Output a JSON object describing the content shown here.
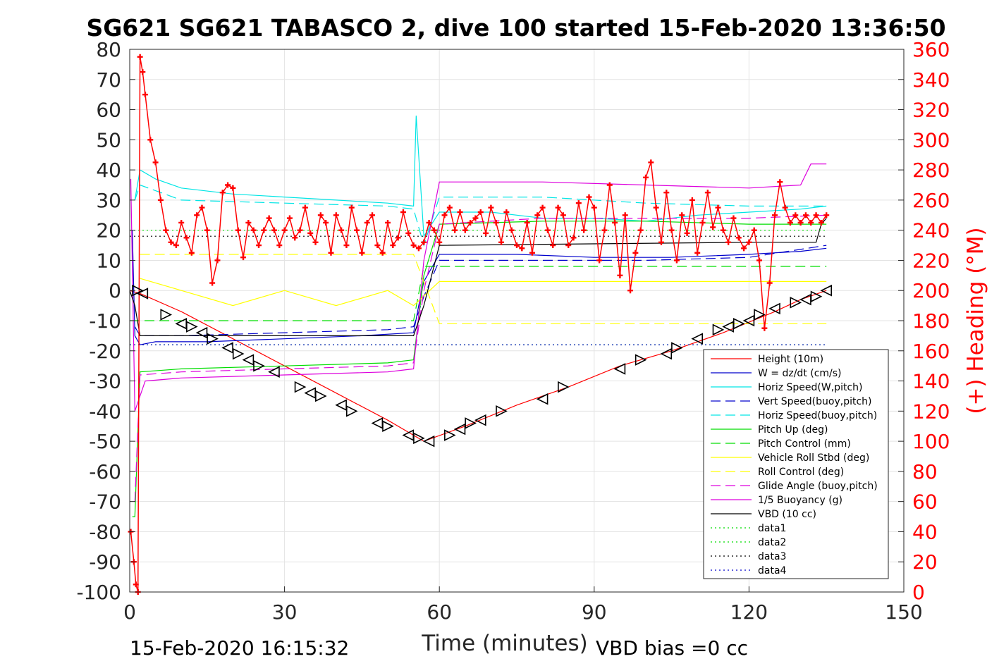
{
  "chart_data": {
    "type": "line",
    "title": "SG621 SG621 TABASCO 2, dive 100 started 15-Feb-2020 13:36:50",
    "xlabel": "Time (minutes)",
    "ylabel": "",
    "y2label": "(+) Heading (°M)",
    "xlim": [
      0,
      150
    ],
    "ylim": [
      -100,
      80
    ],
    "y2lim": [
      0,
      360
    ],
    "xticks": [
      "0",
      "30",
      "60",
      "90",
      "120",
      "150"
    ],
    "yticks": [
      "80",
      "70",
      "60",
      "50",
      "40",
      "30",
      "20",
      "10",
      "0",
      "-10",
      "-20",
      "-30",
      "-40",
      "-50",
      "-60",
      "-70",
      "-80",
      "-90",
      "-100"
    ],
    "y2ticks": [
      "360",
      "340",
      "320",
      "300",
      "280",
      "260",
      "240",
      "220",
      "200",
      "180",
      "160",
      "140",
      "120",
      "100",
      "80",
      "60",
      "40",
      "20",
      "0"
    ],
    "grid": true,
    "legend_position": "bottom-right",
    "footer_left": "15-Feb-2020 16:15:32",
    "footer_right": "VBD bias =0 cc",
    "series": [
      {
        "name": "Height (10m)",
        "color": "#ff0000",
        "style": "solid",
        "x": [
          0,
          2,
          10,
          20,
          30,
          40,
          50,
          57,
          65,
          75,
          85,
          95,
          105,
          115,
          125,
          130,
          135
        ],
        "y": [
          0,
          -1,
          -7,
          -16,
          -25,
          -34,
          -43,
          -50,
          -45,
          -38,
          -32,
          -25,
          -20,
          -14,
          -7,
          -3,
          0
        ]
      },
      {
        "name": "W = dz/dt (cm/s)",
        "color": "#0000cc",
        "style": "solid",
        "x": [
          0.5,
          1,
          2,
          5,
          15,
          30,
          45,
          55,
          56,
          57,
          60,
          75,
          90,
          105,
          120,
          130,
          135
        ],
        "y": [
          20,
          -15,
          -18,
          -17,
          -17,
          -16,
          -15,
          -14,
          -5,
          3,
          12,
          12,
          11,
          11,
          12,
          13,
          14
        ]
      },
      {
        "name": "Horiz Speed(W,pitch)",
        "color": "#00e5e5",
        "style": "solid",
        "x": [
          1,
          2,
          5,
          10,
          20,
          30,
          40,
          50,
          55,
          55.5,
          57,
          60,
          70,
          80,
          90,
          100,
          110,
          120,
          130,
          135
        ],
        "y": [
          30,
          40,
          37,
          34,
          32,
          31,
          30,
          29,
          28,
          58,
          18,
          26,
          26,
          24,
          24,
          23,
          25,
          26,
          27,
          28
        ]
      },
      {
        "name": "Vert Speed(buoy,pitch)",
        "color": "#0000cc",
        "style": "dashed",
        "x": [
          1,
          2,
          10,
          30,
          50,
          55,
          57,
          60,
          80,
          100,
          120,
          135
        ],
        "y": [
          -12,
          -15,
          -15,
          -14,
          -13,
          -12,
          -2,
          10,
          10,
          10,
          11,
          15
        ]
      },
      {
        "name": "Horiz Speed(buoy,pitch)",
        "color": "#00e5e5",
        "style": "dashed",
        "x": [
          1,
          2,
          10,
          30,
          50,
          55,
          57,
          60,
          80,
          100,
          120,
          135
        ],
        "y": [
          30,
          35,
          30,
          29,
          28,
          27,
          15,
          31,
          31,
          29,
          28,
          28
        ]
      },
      {
        "name": "Pitch Up (deg)",
        "color": "#00dd00",
        "style": "solid",
        "x": [
          0.5,
          1,
          2,
          10,
          30,
          50,
          55,
          57,
          60,
          80,
          100,
          120,
          135
        ],
        "y": [
          -75,
          -75,
          -27,
          -26,
          -25,
          -24,
          -23,
          5,
          22,
          23,
          23,
          22,
          22
        ]
      },
      {
        "name": "Pitch Control (mm)",
        "color": "#00dd00",
        "style": "dashed",
        "x": [
          0,
          2,
          55,
          57,
          60,
          135
        ],
        "y": [
          -10,
          -10,
          -10,
          8,
          8,
          8
        ]
      },
      {
        "name": "Vehicle Roll Stbd (deg)",
        "color": "#ffff00",
        "style": "solid",
        "x": [
          2,
          10,
          20,
          30,
          40,
          50,
          55,
          60,
          70,
          80,
          90,
          100,
          110,
          120,
          130,
          135
        ],
        "y": [
          4,
          0,
          -5,
          0,
          -5,
          0,
          -5,
          3,
          3,
          3,
          3,
          3,
          3,
          3,
          3,
          3
        ]
      },
      {
        "name": "Roll Control (deg)",
        "color": "#ffff00",
        "style": "dashed",
        "x": [
          2,
          20,
          40,
          55,
          60,
          90,
          120,
          135
        ],
        "y": [
          12,
          12,
          12,
          12,
          -11,
          -11,
          -11,
          -11
        ]
      },
      {
        "name": "Glide Angle (buoy,pitch)",
        "color": "#dd00dd",
        "style": "dashed",
        "x": [
          1,
          2,
          10,
          30,
          50,
          55,
          57,
          60,
          80,
          100,
          120,
          135
        ],
        "y": [
          -70,
          -28,
          -27,
          -26,
          -25,
          -24,
          0,
          22,
          24,
          24,
          24,
          25
        ]
      },
      {
        "name": "1/5 Buoyancy (g)",
        "color": "#dd00dd",
        "style": "solid",
        "x": [
          0.2,
          1,
          2,
          3,
          10,
          30,
          50,
          55,
          57,
          60,
          80,
          100,
          120,
          130,
          132,
          135
        ],
        "y": [
          37,
          -40,
          -35,
          -30,
          -29,
          -28,
          -27,
          -26,
          10,
          36,
          36,
          35,
          34,
          35,
          42,
          42
        ]
      },
      {
        "name": "VBD (10 cc)",
        "color": "#000000",
        "style": "solid",
        "x": [
          0,
          1,
          2,
          55,
          57,
          60,
          120,
          133,
          134,
          135
        ],
        "y": [
          0,
          -5,
          -15,
          -15,
          -5,
          15,
          16,
          16,
          22,
          24
        ]
      },
      {
        "name": "data1",
        "color": "#00dd00",
        "style": "dotted",
        "x": [
          0,
          135
        ],
        "y": [
          20,
          20
        ]
      },
      {
        "name": "data2",
        "color": "#00dd00",
        "style": "dotted",
        "x": [
          0,
          135
        ],
        "y": [
          -18,
          -18
        ]
      },
      {
        "name": "data3",
        "color": "#000000",
        "style": "dotted",
        "x": [
          0,
          135
        ],
        "y": [
          18,
          18
        ]
      },
      {
        "name": "data4",
        "color": "#0000cc",
        "style": "dotted",
        "x": [
          0,
          135
        ],
        "y": [
          -18,
          -18
        ]
      }
    ],
    "heading": {
      "name": "(+) Heading",
      "color": "#ff0000",
      "axis": "right",
      "x": [
        0.2,
        0.8,
        1.2,
        1.6,
        2,
        2.5,
        3,
        4,
        5,
        6,
        7,
        8,
        9,
        10,
        11,
        12,
        13,
        14,
        15,
        16,
        17,
        18,
        19,
        20,
        21,
        22,
        23,
        24,
        25,
        26,
        27,
        28,
        29,
        30,
        31,
        32,
        33,
        34,
        35,
        36,
        37,
        38,
        39,
        40,
        41,
        42,
        43,
        44,
        45,
        46,
        47,
        48,
        49,
        50,
        51,
        52,
        53,
        54,
        55,
        56,
        57,
        58,
        59,
        60,
        61,
        62,
        63,
        64,
        65,
        66,
        67,
        68,
        69,
        70,
        71,
        72,
        73,
        74,
        75,
        76,
        77,
        78,
        79,
        80,
        81,
        82,
        83,
        84,
        85,
        86,
        87,
        88,
        89,
        90,
        91,
        92,
        93,
        94,
        95,
        96,
        97,
        98,
        99,
        100,
        101,
        102,
        103,
        104,
        105,
        106,
        107,
        108,
        109,
        110,
        111,
        112,
        113,
        114,
        115,
        116,
        117,
        118,
        119,
        120,
        121,
        122,
        123,
        124,
        125,
        126,
        127,
        128,
        129,
        130,
        131,
        132,
        133,
        134,
        135
      ],
      "y": [
        40,
        20,
        5,
        0,
        355,
        345,
        330,
        300,
        285,
        260,
        240,
        232,
        230,
        245,
        235,
        225,
        250,
        255,
        240,
        205,
        220,
        265,
        270,
        268,
        240,
        222,
        245,
        240,
        230,
        240,
        248,
        240,
        230,
        240,
        248,
        235,
        240,
        255,
        238,
        232,
        250,
        245,
        225,
        250,
        240,
        230,
        255,
        240,
        225,
        245,
        250,
        230,
        225,
        245,
        230,
        235,
        252,
        238,
        230,
        228,
        232,
        245,
        240,
        232,
        250,
        255,
        240,
        252,
        240,
        245,
        248,
        252,
        238,
        255,
        245,
        232,
        252,
        240,
        230,
        228,
        245,
        225,
        250,
        255,
        240,
        230,
        255,
        250,
        230,
        235,
        258,
        240,
        262,
        255,
        220,
        240,
        270,
        245,
        210,
        250,
        200,
        225,
        240,
        275,
        285,
        255,
        232,
        265,
        240,
        220,
        250,
        238,
        260,
        225,
        245,
        265,
        242,
        255,
        240,
        232,
        248,
        235,
        228,
        232,
        240,
        220,
        175,
        205,
        250,
        272,
        255,
        245,
        250,
        245,
        250,
        245,
        250,
        245,
        250
      ]
    },
    "vbd_markers": {
      "name": "VBD (10 cc)",
      "color": "#000000",
      "x": [
        1.5,
        2.5,
        7,
        10,
        12,
        14,
        16,
        19,
        21,
        23,
        25,
        28,
        33,
        35,
        37,
        41,
        43,
        48,
        50,
        54,
        56,
        58,
        62,
        64,
        66,
        68,
        72,
        80,
        84,
        95,
        99,
        104,
        106,
        110,
        114,
        116,
        118,
        120,
        122,
        125,
        129,
        131,
        133,
        135
      ],
      "y": [
        0,
        -1,
        -8,
        -11,
        -12,
        -14,
        -16,
        -19,
        -21,
        -23,
        -25,
        -27,
        -32,
        -34,
        -35,
        -38,
        -40,
        -44,
        -45,
        -48,
        -49,
        -50,
        -48,
        -46,
        -44,
        -43,
        -40,
        -36,
        -32,
        -26,
        -23,
        -21,
        -19,
        -16,
        -13,
        -12,
        -11,
        -10,
        -8,
        -6,
        -4,
        -3,
        -2,
        0
      ]
    }
  }
}
